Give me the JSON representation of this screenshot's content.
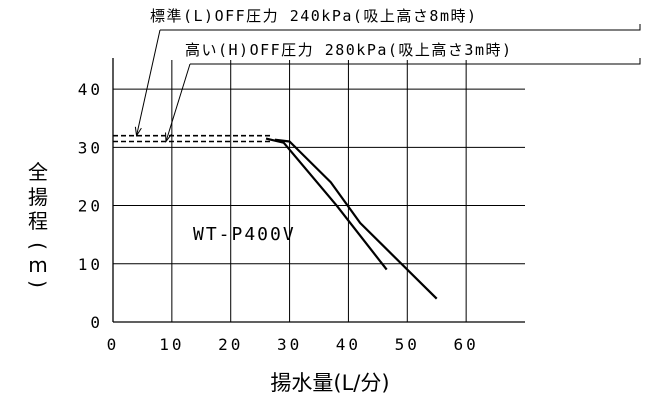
{
  "chart_data": {
    "type": "line",
    "title": "",
    "xlabel": "揚水量(L/分)",
    "ylabel": "全揚程(m)",
    "xlim": [
      0,
      70
    ],
    "ylim": [
      0,
      45
    ],
    "xticks": [
      "0",
      "10",
      "20",
      "30",
      "40",
      "50",
      "60"
    ],
    "yticks": [
      "0",
      "10",
      "20",
      "30",
      "40"
    ],
    "grid": true,
    "model_label": "WT-P400V",
    "annotations": [
      {
        "text": "標準(L)OFF圧力 240kPa(吸上高さ8m時)",
        "points_to": [
          4,
          32
        ]
      },
      {
        "text": "高い(H)OFF圧力 280kPa(吸上高さ3m時)",
        "points_to": [
          9,
          31
        ]
      }
    ],
    "dashed_lines": [
      {
        "y": 32,
        "x": [
          0,
          27
        ]
      },
      {
        "y": 31,
        "x": [
          0,
          27
        ]
      }
    ],
    "series": [
      {
        "x": [
          26,
          29,
          38,
          46.5
        ],
        "y": [
          31.5,
          30.8,
          20,
          9
        ]
      },
      {
        "x": [
          27.5,
          30,
          37,
          42,
          55
        ],
        "y": [
          31.3,
          31,
          24,
          17,
          4
        ]
      }
    ]
  }
}
